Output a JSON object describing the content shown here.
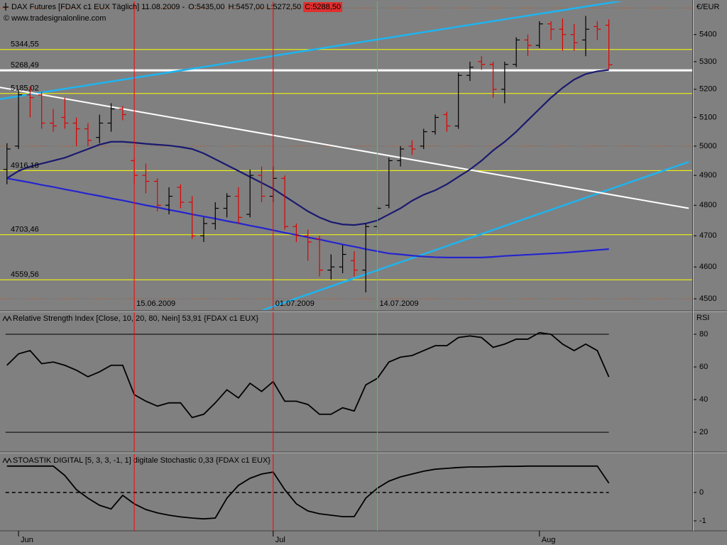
{
  "header": {
    "instrument": "DAX Futures [FDAX c1 EUX  Täglich] 11.08.2009 -",
    "open": "O:5435,00",
    "high_low": "H:5457,00 L:5272,50",
    "close": "C:5288,50",
    "copyright": "© www.tradesignalonline.com"
  },
  "chart_data": [
    {
      "type": "ohlc",
      "y_label": "€/EUR",
      "log": true,
      "categories": [
        null,
        "Jun",
        null,
        null,
        null,
        null,
        null,
        null,
        null,
        null,
        null,
        null,
        null,
        null,
        null,
        null,
        null,
        null,
        null,
        null,
        null,
        null,
        null,
        "Jul",
        null,
        null,
        null,
        null,
        null,
        null,
        null,
        null,
        null,
        null,
        null,
        null,
        null,
        null,
        null,
        null,
        null,
        null,
        null,
        null,
        null,
        null,
        "Aug",
        null,
        null,
        null,
        null,
        null,
        null
      ],
      "xlim": [
        -0.6,
        59.2
      ],
      "open": [
        4920,
        5000,
        5180,
        5180,
        5080,
        5100,
        5080,
        5060,
        5030,
        5080,
        5130,
        4950,
        4900,
        4880,
        4800,
        4860,
        4810,
        4700,
        4740,
        4790,
        4830,
        4770,
        4900,
        4830,
        4890,
        4730,
        4700,
        4690,
        4590,
        4600,
        4620,
        4590,
        4730,
        4800,
        4950,
        5000,
        5000,
        5050,
        5110,
        5070,
        5250,
        5300,
        5290,
        5200,
        5290,
        5380,
        5360,
        5440,
        5420,
        5400,
        5380,
        5430,
        5435
      ],
      "high": [
        5010,
        5200,
        5210,
        5190,
        5130,
        5170,
        5100,
        5080,
        5110,
        5150,
        5140,
        4960,
        4940,
        4890,
        4860,
        4870,
        4830,
        4760,
        4810,
        4840,
        4860,
        4920,
        4930,
        4930,
        4900,
        4740,
        4720,
        4700,
        4640,
        4670,
        4650,
        4740,
        4800,
        4960,
        5000,
        5020,
        5060,
        5110,
        5120,
        5260,
        5300,
        5320,
        5300,
        5300,
        5390,
        5400,
        5450,
        5450,
        5460,
        5440,
        5470,
        5450,
        5457
      ],
      "low": [
        4870,
        4990,
        5100,
        5060,
        5050,
        5060,
        5000,
        5000,
        5010,
        5050,
        5090,
        4870,
        4840,
        4780,
        4770,
        4790,
        4690,
        4680,
        4720,
        4760,
        4740,
        4760,
        4810,
        4810,
        4720,
        4680,
        4620,
        4570,
        4560,
        4580,
        4570,
        4520,
        4720,
        4790,
        4930,
        4970,
        4990,
        5040,
        5050,
        5060,
        5230,
        5270,
        5170,
        5150,
        5280,
        5320,
        5350,
        5380,
        5340,
        5340,
        5320,
        5380,
        5272.5
      ],
      "close": [
        4990,
        5180,
        5170,
        5080,
        5070,
        5080,
        5060,
        5020,
        5080,
        5130,
        5110,
        4900,
        4880,
        4800,
        4830,
        4810,
        4700,
        4740,
        4790,
        4830,
        4760,
        4900,
        4830,
        4890,
        4730,
        4700,
        4680,
        4590,
        4600,
        4640,
        4590,
        4730,
        4790,
        4950,
        4990,
        4990,
        5050,
        5100,
        5070,
        5250,
        5280,
        5290,
        5200,
        5290,
        5380,
        5360,
        5440,
        5420,
        5400,
        5370,
        5420,
        5420,
        5288.5
      ],
      "up_color": "#000000",
      "down_color": "#dd0000",
      "series": [
        {
          "color": "#1a1a70",
          "values": [
            4890,
            4915,
            4930,
            4940,
            4950,
            4960,
            4975,
            4990,
            5005,
            5015,
            5015,
            5012,
            5008,
            5005,
            5002,
            4997,
            4990,
            4975,
            4955,
            4935,
            4915,
            4895,
            4875,
            4855,
            4830,
            4805,
            4780,
            4760,
            4745,
            4737,
            4735,
            4740,
            4750,
            4770,
            4790,
            4815,
            4835,
            4850,
            4870,
            4895,
            4920,
            4950,
            4985,
            5015,
            5050,
            5090,
            5130,
            5170,
            5205,
            5235,
            5255,
            5265,
            5270
          ]
        },
        {
          "color": "#2424d0",
          "values": [
            4890,
            4883,
            4876,
            4868,
            4861,
            4853,
            4846,
            4838,
            4831,
            4823,
            4816,
            4808,
            4800,
            4793,
            4785,
            4778,
            4770,
            4763,
            4756,
            4748,
            4741,
            4733,
            4726,
            4718,
            4710,
            4703,
            4695,
            4688,
            4680,
            4672,
            4665,
            4657,
            4650,
            4643,
            4640,
            4636,
            4633,
            4631,
            4630,
            4630,
            4630,
            4630,
            4632,
            4635,
            4637,
            4639,
            4641,
            4643,
            4645,
            4648,
            4651,
            4654,
            4657
          ]
        }
      ],
      "ylim": [
        4465,
        5525
      ],
      "yticks": [
        4500,
        4600,
        4700,
        4800,
        4900,
        5000,
        5100,
        5200,
        5300,
        5400
      ],
      "gridlines": [
        4500,
        5000,
        5500
      ],
      "levels": [
        {
          "value": 5344.55,
          "label": "5344,55",
          "color": "#ffff00"
        },
        {
          "value": 5268.49,
          "label": "5268,49",
          "color": "#ffffff"
        },
        {
          "value": 5185.02,
          "label": "5185,02",
          "color": "#ffff00"
        },
        {
          "value": 4916.18,
          "label": "4916,18",
          "color": "#ffff00"
        },
        {
          "value": 4703.46,
          "label": "4703,46",
          "color": "#ffff00"
        },
        {
          "value": 4559.56,
          "label": "4559,56",
          "color": "#ffff00"
        }
      ],
      "vlines": [
        {
          "index": 11,
          "label": "15.06.2009",
          "color": "#ff0000"
        },
        {
          "index": 23,
          "label": "01.07.2009",
          "color": "#ff0000"
        },
        {
          "index": 32,
          "label": "14.07.2009",
          "color": "#00ff00"
        }
      ],
      "trendlines": [
        {
          "color": "#1eb4f0",
          "from": [
            -0.6,
            5165
          ],
          "to": [
            53.1,
            5527
          ]
        },
        {
          "color": "#1eb4f0",
          "from": [
            22.1,
            4465
          ],
          "to": [
            58.9,
            4946
          ]
        },
        {
          "color": "#ffffff",
          "from": [
            -0.6,
            5207
          ],
          "to": [
            58.9,
            4790
          ]
        }
      ]
    },
    {
      "type": "line",
      "title": "Relative Strength Index [Close, 10, 20, 80, Nein] 53,91 {FDAX c1 EUX}",
      "y_label": "RSI",
      "series": [
        {
          "color": "#000000",
          "values": [
            61,
            68,
            70,
            62,
            63,
            61,
            58,
            54,
            57,
            61,
            61,
            43,
            39,
            36,
            38,
            38,
            29,
            31,
            38,
            46,
            41,
            50,
            45,
            51,
            39,
            39,
            37,
            31,
            31,
            35,
            33,
            49,
            53,
            63,
            66,
            67,
            70,
            73,
            73,
            78,
            79,
            78,
            72,
            74,
            77,
            77,
            81,
            80,
            74,
            70,
            74,
            70,
            53.91
          ]
        }
      ],
      "ylim": [
        8.3,
        93.5
      ],
      "yticks": [
        20,
        40,
        60,
        80
      ],
      "hlines": [
        20,
        80
      ]
    },
    {
      "type": "line",
      "title": "STOASTIK DIGITAL [5, 3, 3, -1, 1] digitale Stochastic 0,33 {FDAX c1 EUX}",
      "series": [
        {
          "color": "#000000",
          "values": [
            0.93,
            0.93,
            0.93,
            0.93,
            0.93,
            0.6,
            0.1,
            -0.2,
            -0.45,
            -0.58,
            -0.1,
            -0.4,
            -0.6,
            -0.72,
            -0.8,
            -0.86,
            -0.9,
            -0.93,
            -0.9,
            -0.2,
            0.25,
            0.5,
            0.65,
            0.72,
            0.1,
            -0.4,
            -0.65,
            -0.75,
            -0.8,
            -0.85,
            -0.85,
            -0.2,
            0.15,
            0.4,
            0.55,
            0.65,
            0.75,
            0.82,
            0.85,
            0.88,
            0.9,
            0.9,
            0.91,
            0.92,
            0.92,
            0.93,
            0.93,
            0.93,
            0.93,
            0.93,
            0.93,
            0.93,
            0.33
          ]
        }
      ],
      "ylim": [
        -1.35,
        1.35
      ],
      "yticks": [
        0,
        -1
      ],
      "dashed_levels": [
        0
      ]
    }
  ]
}
